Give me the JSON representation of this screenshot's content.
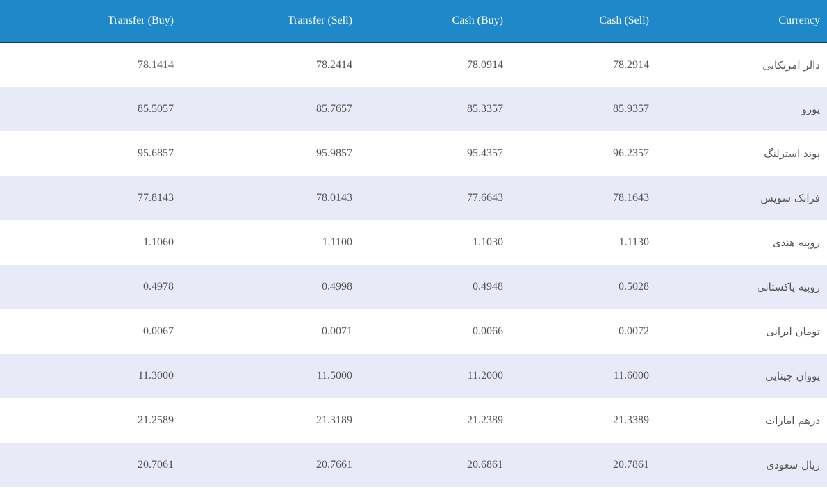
{
  "table": {
    "headers": [
      "Transfer (Buy)",
      "Transfer (Sell)",
      "Cash (Buy)",
      "Cash (Sell)",
      "Currency"
    ],
    "rows": [
      {
        "transfer_buy": "78.1414",
        "transfer_sell": "78.2414",
        "cash_buy": "78.0914",
        "cash_sell": "78.2914",
        "currency": "دالر امریکایی"
      },
      {
        "transfer_buy": "85.5057",
        "transfer_sell": "85.7657",
        "cash_buy": "85.3357",
        "cash_sell": "85.9357",
        "currency": "یورو"
      },
      {
        "transfer_buy": "95.6857",
        "transfer_sell": "95.9857",
        "cash_buy": "95.4357",
        "cash_sell": "96.2357",
        "currency": "پوند استرلنگ"
      },
      {
        "transfer_buy": "77.8143",
        "transfer_sell": "78.0143",
        "cash_buy": "77.6643",
        "cash_sell": "78.1643",
        "currency": "فرانک سویس"
      },
      {
        "transfer_buy": "1.1060",
        "transfer_sell": "1.1100",
        "cash_buy": "1.1030",
        "cash_sell": "1.1130",
        "currency": "روپیه هندی"
      },
      {
        "transfer_buy": "0.4978",
        "transfer_sell": "0.4998",
        "cash_buy": "0.4948",
        "cash_sell": "0.5028",
        "currency": "روپیه پاکستانی"
      },
      {
        "transfer_buy": "0.0067",
        "transfer_sell": "0.0071",
        "cash_buy": "0.0066",
        "cash_sell": "0.0072",
        "currency": "تومان ایرانی"
      },
      {
        "transfer_buy": "11.3000",
        "transfer_sell": "11.5000",
        "cash_buy": "11.2000",
        "cash_sell": "11.6000",
        "currency": "یووان چینایی"
      },
      {
        "transfer_buy": "21.2589",
        "transfer_sell": "21.3189",
        "cash_buy": "21.2389",
        "cash_sell": "21.3389",
        "currency": "درهم امارات"
      },
      {
        "transfer_buy": "20.7061",
        "transfer_sell": "20.7661",
        "cash_buy": "20.6861",
        "cash_sell": "20.7861",
        "currency": "ریال سعودی"
      }
    ]
  },
  "colors": {
    "header_bg": "#1e88c8",
    "header_text": "#ffffff",
    "row_alt_bg": "#e9eaf8",
    "cell_text": "#555555"
  }
}
